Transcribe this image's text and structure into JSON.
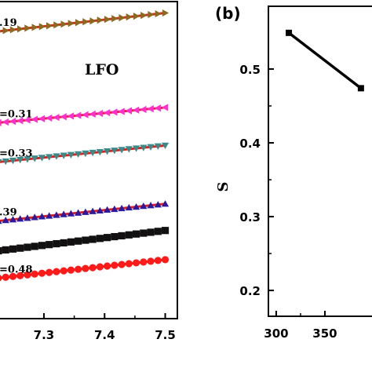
{
  "chart_data": [
    {
      "type": "scatter",
      "title": "",
      "panel_label": "",
      "annotation": "LFO",
      "xlabel": "",
      "ylabel": "",
      "xlim": [
        7.225,
        7.52
      ],
      "ylim": [
        0,
        10
      ],
      "x_ticks": [
        7.3,
        7.4,
        7.5
      ],
      "x_tick_labels": [
        "7.3",
        "7.4",
        "7.5"
      ],
      "grid": false,
      "series": [
        {
          "label": ".19",
          "marker": "triangle-right",
          "color": "#8a6a1f",
          "x": [
            7.225,
            7.5
          ],
          "y": [
            9.06,
            9.64
          ]
        },
        {
          "label": "=0.31",
          "marker": "triangle-left",
          "color": "#ff2ecf",
          "x": [
            7.225,
            7.5
          ],
          "y": [
            6.18,
            6.66
          ]
        },
        {
          "label": "=0.33",
          "marker": "triangle-down",
          "color": "#3a8a8a",
          "x": [
            7.225,
            7.5
          ],
          "y": [
            4.94,
            5.46
          ]
        },
        {
          "label": ".39",
          "marker": "triangle-up",
          "color": "#2b1a9e",
          "x": [
            7.225,
            7.5
          ],
          "y": [
            3.08,
            3.62
          ]
        },
        {
          "label": "",
          "marker": "square",
          "color": "#111111",
          "x": [
            7.225,
            7.5
          ],
          "y": [
            2.14,
            2.78
          ]
        },
        {
          "label": "=0.48",
          "marker": "circle",
          "color": "#ff1a1a",
          "x": [
            7.225,
            7.5
          ],
          "y": [
            1.28,
            1.86
          ]
        }
      ],
      "fit_color": "#e0201a"
    },
    {
      "type": "line",
      "panel_label": "(b)",
      "xlabel": "",
      "ylabel": "S",
      "xlim": [
        292,
        400
      ],
      "ylim": [
        0.165,
        0.585
      ],
      "x_ticks": [
        300,
        350
      ],
      "x_tick_labels": [
        "300",
        "350"
      ],
      "y_ticks": [
        0.2,
        0.3,
        0.4,
        0.5
      ],
      "y_tick_labels": [
        "0.2",
        "0.3",
        "0.4",
        "0.5"
      ],
      "grid": false,
      "series": [
        {
          "x": [
            313,
            387
          ],
          "y": [
            0.549,
            0.474
          ],
          "marker": "square",
          "color": "#000000"
        }
      ]
    }
  ]
}
